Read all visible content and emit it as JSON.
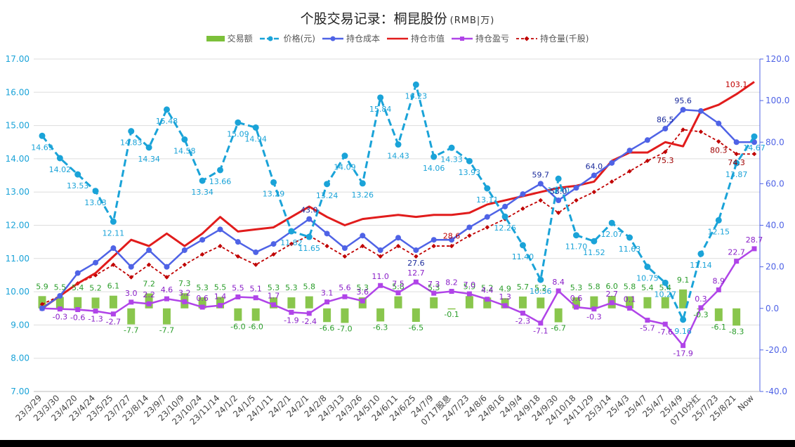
{
  "title": "个股交易记录：桐昆股份",
  "unit": "(RMB|万)",
  "chart_data": {
    "type": "combo",
    "title": "个股交易记录：桐昆股份",
    "subtitle": "(RMB|万)",
    "categories": [
      "23/3/29",
      "23/3/30",
      "23/4/20",
      "23/4/24",
      "23/5/25",
      "23/7/27",
      "23/8/14",
      "23/9/7",
      "23/10/9",
      "23/10/24",
      "23/11/14",
      "24/1/2",
      "24/1/5",
      "24/1/11",
      "24/2/1",
      "24/2/1",
      "24/2/8",
      "24/3/13",
      "24/3/26",
      "24/5/10",
      "24/6/11",
      "24/6/25",
      "24/7/9",
      "0717股息",
      "24/7/23",
      "24/8/6",
      "24/8/16",
      "24/9/4",
      "24/9/18",
      "24/9/30",
      "24/10/18",
      "24/11/29",
      "25/3/14",
      "25/4/3",
      "25/4/7",
      "25/4/7",
      "25/4/9",
      "0710分红",
      "25/7/23",
      "25/8/21",
      "Now"
    ],
    "left_axis": {
      "min": 7,
      "max": 17,
      "step": 1,
      "ticks": [
        "7.00",
        "8.00",
        "9.00",
        "10.00",
        "11.00",
        "12.00",
        "13.00",
        "14.00",
        "15.00",
        "16.00",
        "17.00"
      ]
    },
    "right_axis": {
      "min": -40,
      "max": 120,
      "step": 20,
      "ticks": [
        "-40.0",
        "-20.0",
        "0.0",
        "20.0",
        "40.0",
        "60.0",
        "80.0",
        "100.0",
        "120.0"
      ]
    },
    "series": [
      {
        "name": "交易额",
        "type": "bar",
        "axis": "right",
        "color": "#7cc03a",
        "values": [
          5.9,
          5.5,
          5.4,
          5.2,
          6.1,
          -7.7,
          7.2,
          -7.7,
          7.3,
          5.3,
          5.5,
          -6.0,
          -6.0,
          5.3,
          5.3,
          5.8,
          -6.6,
          -7.0,
          5.3,
          -6.3,
          5.8,
          -6.5,
          5.3,
          -0.1,
          5.9,
          5.2,
          4.9,
          5.7,
          5.2,
          -6.7,
          5.3,
          5.8,
          6.0,
          5.8,
          5.4,
          5.4,
          9.1,
          -0.3,
          -6.1,
          -8.3,
          null
        ]
      },
      {
        "name": "价格(元)",
        "type": "line",
        "axis": "left",
        "color": "#1aa3d8",
        "values": [
          14.69,
          14.02,
          13.53,
          13.03,
          12.11,
          14.83,
          14.34,
          15.48,
          14.58,
          13.34,
          13.66,
          15.09,
          14.94,
          13.29,
          11.82,
          11.65,
          13.24,
          14.09,
          13.26,
          15.84,
          14.43,
          16.23,
          14.06,
          14.33,
          13.93,
          13.11,
          12.26,
          11.4,
          10.36,
          13.4,
          11.7,
          11.52,
          12.07,
          11.63,
          10.75,
          10.27,
          9.16,
          11.14,
          12.15,
          13.87,
          14.67
        ]
      },
      {
        "name": "持仓成本",
        "type": "line",
        "axis": "right",
        "color": "#4f63e6",
        "values": [
          0,
          6,
          17,
          22,
          29,
          20,
          28,
          20,
          28,
          33,
          38,
          32,
          27,
          31,
          37,
          43,
          36,
          29,
          35,
          28,
          34,
          28,
          33,
          33,
          39,
          44,
          49,
          55,
          60,
          52,
          58,
          64,
          70,
          76,
          81,
          86.5,
          95.6,
          95,
          89,
          80,
          80
        ]
      },
      {
        "name": "持仓市值",
        "type": "line",
        "axis": "right",
        "color": "#e11c1c",
        "values": [
          0,
          6,
          12,
          17,
          25,
          33,
          30,
          36,
          30,
          36,
          44,
          37,
          38,
          39,
          44,
          49,
          44,
          40,
          43,
          44,
          45,
          44,
          45,
          45,
          46,
          50,
          52,
          54,
          56,
          58,
          59,
          61,
          71,
          75,
          75,
          80,
          78,
          95,
          98,
          103.1,
          109
        ]
      },
      {
        "name": "持仓盈亏",
        "type": "line",
        "axis": "right",
        "color": "#b044e8",
        "values": [
          0,
          -0.3,
          -0.6,
          -1.3,
          -2.7,
          3.0,
          2.2,
          4.6,
          3.2,
          0.6,
          1.4,
          5.5,
          5.1,
          1.7,
          -1.9,
          -2.4,
          3.1,
          5.6,
          3.6,
          11.0,
          7.5,
          12.7,
          7.3,
          8.2,
          7.0,
          4.4,
          1.3,
          -2.3,
          -7.1,
          8.4,
          0.6,
          -0.3,
          2.7,
          0.1,
          -5.7,
          -7.6,
          -17.9,
          0.3,
          8.9,
          22.7,
          28.7
        ]
      },
      {
        "name": "持仓量(千股)",
        "type": "line",
        "axis": "right",
        "color": "#c00000",
        "values": [
          2,
          6,
          12,
          16,
          21,
          15,
          21,
          15,
          21,
          26,
          30,
          25,
          21,
          26,
          31,
          35,
          30,
          25,
          30,
          25,
          30,
          25,
          30,
          30,
          35,
          39,
          43,
          48,
          52,
          46,
          52,
          56,
          61,
          66,
          71,
          75.3,
          86,
          85,
          80.3,
          74.3,
          74.3
        ]
      }
    ],
    "labels": {
      "price": [
        "14.69",
        "14.02",
        "13.53",
        "13.03",
        "12.11",
        "14.83",
        "14.34",
        "15.48",
        "14.58",
        "13.34",
        "13.66",
        "15.09",
        "14.94",
        "13.29",
        "11.82",
        "11.65",
        "13.24",
        "14.09",
        "13.26",
        "15.84",
        "14.43",
        "16.23",
        "14.06",
        "14.33",
        "13.93",
        "13.11",
        "12.26",
        "11.40",
        "10.36",
        "13.40",
        "11.70",
        "11.52",
        "12.07",
        "11.63",
        "10.75",
        "10.27",
        "9.16",
        "11.14",
        "12.15",
        "13.87",
        "14.67"
      ],
      "amount": [
        "5.9",
        "5.5",
        "5.4",
        "5.2",
        "6.1",
        "-7.7",
        "7.2",
        "-7.7",
        "7.3",
        "5.3",
        "5.5",
        "-6.0",
        "-6.0",
        "5.3",
        "5.3",
        "5.8",
        "-6.6",
        "-7.0",
        "5.3",
        "-6.3",
        "5.8",
        "-6.5",
        "5.3",
        "-0.1",
        "5.9",
        "5.2",
        "4.9",
        "5.7",
        "5.2",
        "-6.7",
        "5.3",
        "5.8",
        "6.0",
        "5.8",
        "5.4",
        "5.4",
        "9.1",
        "-0.3",
        "-6.1",
        "-8.3"
      ],
      "pnl": [
        "-0.3",
        "-0.6",
        "-1.3",
        "-2.7",
        "3.0",
        "2.2",
        "4.6",
        "3.2",
        "0.6",
        "1.4",
        "5.5",
        "5.1",
        "1.7",
        "-1.9",
        "-2.4",
        "3.1",
        "5.6",
        "3.6",
        "11.0",
        "7.5",
        "12.7",
        "7.3",
        "8.2",
        "7.0",
        "4.4",
        "1.3",
        "-2.3",
        "-7.1",
        "8.4",
        "0.6",
        "-0.3",
        "2.7",
        "0.1",
        "-5.7",
        "-7.6",
        "-17.9",
        "0.3",
        "8.9",
        "22.7",
        "28.7"
      ],
      "cost": [
        "43.0",
        "27.6",
        "59.7",
        "53.0",
        "64.0",
        "86.5",
        "95.6"
      ],
      "market": [
        "28.6",
        "103.1"
      ],
      "holding": [
        "75.3",
        "80.3",
        "74.3"
      ]
    }
  },
  "legend": [
    {
      "label": "交易额",
      "icon": "bar-swatch"
    },
    {
      "label": "价格(元)",
      "icon": "dashed-line-circle"
    },
    {
      "label": "持仓成本",
      "icon": "line-circle"
    },
    {
      "label": "持仓市值",
      "icon": "line"
    },
    {
      "label": "持仓盈亏",
      "icon": "line-square"
    },
    {
      "label": "持仓量(千股)",
      "icon": "dashed-line-diamond"
    }
  ]
}
